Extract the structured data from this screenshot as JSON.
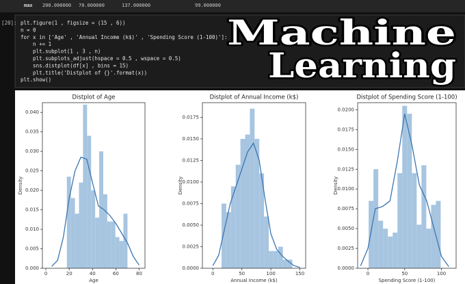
{
  "summary_row": {
    "label": "max",
    "cells": [
      "200.000000",
      "70.000000",
      "137.000000",
      "99.000000"
    ]
  },
  "cell": {
    "prompt": "[20]:",
    "code": [
      "plt.figure(1 , figsize = (15 , 6))",
      "n = 0",
      "for x in ['Age' , 'Annual Income (k$)' , 'Spending Score (1-100)']:",
      "    n += 1",
      "    plt.subplot(1 , 3 , n)",
      "    plt.subplots_adjust(hspace = 0.5 , wspace = 0.5)",
      "    sns.distplot(df[x] , bins = 15)",
      "    plt.title('Distplot of {}'.format(x))",
      "plt.show()"
    ]
  },
  "overlay": {
    "line1": "Machine",
    "line2": "Learning"
  },
  "chart_data": [
    {
      "type": "histogram",
      "title": "Distplot of Age",
      "xlabel": "Age",
      "ylabel": "Density",
      "bins": [
        18,
        21.47,
        24.93,
        28.4,
        31.87,
        35.33,
        38.8,
        42.27,
        45.73,
        49.2,
        52.67,
        56.13,
        59.6,
        63.07,
        66.53,
        70
      ],
      "values": [
        0.0235,
        0.018,
        0.014,
        0.022,
        0.042,
        0.034,
        0.02,
        0.013,
        0.03,
        0.019,
        0.012,
        0.012,
        0.008,
        0.007,
        0.014
      ],
      "color": "#a7c5e0",
      "line_color": "#3b75af",
      "density_curve": {
        "x": [
          5,
          10,
          15,
          20,
          25,
          30,
          35,
          40,
          45,
          50,
          55,
          60,
          65,
          70,
          75,
          80
        ],
        "y": [
          0.0005,
          0.002,
          0.008,
          0.018,
          0.025,
          0.0285,
          0.028,
          0.022,
          0.016,
          0.015,
          0.0135,
          0.0115,
          0.009,
          0.0065,
          0.003,
          0.0008
        ]
      },
      "xlim": [
        -3,
        85
      ],
      "xticks": [
        0,
        20,
        40,
        60,
        80
      ],
      "ylim": [
        0,
        0.0425
      ],
      "yticks": [
        {
          "value": 0,
          "label": "0.000"
        },
        {
          "value": 0.005,
          "label": "0.005"
        },
        {
          "value": 0.01,
          "label": "0.010"
        },
        {
          "value": 0.015,
          "label": "0.015"
        },
        {
          "value": 0.02,
          "label": "0.020"
        },
        {
          "value": 0.025,
          "label": "0.025"
        },
        {
          "value": 0.03,
          "label": "0.030"
        },
        {
          "value": 0.035,
          "label": "0.035"
        },
        {
          "value": 0.04,
          "label": "0.040"
        }
      ]
    },
    {
      "type": "histogram",
      "title": "Distplot of Annual Income (k$)",
      "xlabel": "Annual Income (k$)",
      "ylabel": "Density",
      "bins": [
        15,
        23.13,
        31.27,
        39.4,
        47.53,
        55.67,
        63.8,
        71.93,
        80.07,
        88.2,
        96.33,
        104.47,
        112.6,
        120.73,
        128.87,
        137
      ],
      "values": [
        0.0075,
        0.0065,
        0.0095,
        0.012,
        0.015,
        0.0155,
        0.0185,
        0.015,
        0.011,
        0.006,
        0.002,
        0.002,
        0.0025,
        0.001,
        0.001
      ],
      "color": "#a7c5e0",
      "line_color": "#3b75af",
      "density_curve": {
        "x": [
          0,
          10,
          20,
          30,
          40,
          50,
          60,
          70,
          80,
          90,
          100,
          110,
          120,
          130,
          140,
          150
        ],
        "y": [
          0.0003,
          0.0015,
          0.0045,
          0.0075,
          0.0095,
          0.0115,
          0.0135,
          0.0145,
          0.0125,
          0.008,
          0.004,
          0.0022,
          0.0014,
          0.0008,
          0.0003,
          0.0001
        ]
      },
      "xlim": [
        -18,
        160
      ],
      "xticks": [
        0,
        50,
        100,
        150
      ],
      "ylim": [
        0,
        0.0192
      ],
      "yticks": [
        {
          "value": 0,
          "label": "0.0000"
        },
        {
          "value": 0.0025,
          "label": "0.0025"
        },
        {
          "value": 0.005,
          "label": "0.0050"
        },
        {
          "value": 0.0075,
          "label": "0.0075"
        },
        {
          "value": 0.01,
          "label": "0.0100"
        },
        {
          "value": 0.0125,
          "label": "0.0125"
        },
        {
          "value": 0.015,
          "label": "0.0150"
        },
        {
          "value": 0.0175,
          "label": "0.0175"
        }
      ]
    },
    {
      "type": "histogram",
      "title": "Distplot of Spending Score (1-100)",
      "xlabel": "Spending Score (1-100)",
      "ylabel": "Density",
      "bins": [
        1,
        7.53,
        14.07,
        20.6,
        27.13,
        33.67,
        40.2,
        46.73,
        53.27,
        59.8,
        66.33,
        72.87,
        79.4,
        85.93,
        92.47,
        99
      ],
      "values": [
        0.0085,
        0.0125,
        0.006,
        0.005,
        0.004,
        0.0045,
        0.012,
        0.0205,
        0.0195,
        0.012,
        0.0055,
        0.013,
        0.005,
        0.008,
        0.0085
      ],
      "color": "#a7c5e0",
      "line_color": "#3b75af",
      "density_curve": {
        "x": [
          -10,
          0,
          10,
          20,
          30,
          40,
          50,
          60,
          70,
          80,
          90,
          100,
          110
        ],
        "y": [
          0.0003,
          0.0025,
          0.0075,
          0.0078,
          0.0085,
          0.0135,
          0.0195,
          0.0155,
          0.0105,
          0.0085,
          0.005,
          0.0015,
          0.0002
        ]
      },
      "xlim": [
        -14,
        120
      ],
      "xticks": [
        0,
        50,
        100
      ],
      "ylim": [
        0,
        0.0209
      ],
      "yticks": [
        {
          "value": 0,
          "label": "0.0000"
        },
        {
          "value": 0.0025,
          "label": "0.0025"
        },
        {
          "value": 0.005,
          "label": "0.0050"
        },
        {
          "value": 0.0075,
          "label": "0.0075"
        },
        {
          "value": 0.01,
          "label": "0.0100"
        },
        {
          "value": 0.0125,
          "label": "0.0125"
        },
        {
          "value": 0.015,
          "label": "0.0150"
        },
        {
          "value": 0.0175,
          "label": "0.0175"
        },
        {
          "value": 0.02,
          "label": "0.0200"
        }
      ]
    }
  ]
}
